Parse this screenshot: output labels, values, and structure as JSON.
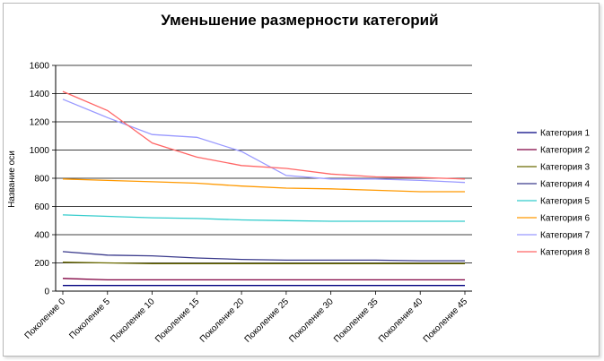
{
  "chart_data": {
    "type": "line",
    "title": "Уменьшение размерности категорий",
    "xlabel": "",
    "ylabel": "Название оси",
    "ylim": [
      0,
      1600
    ],
    "yticks": [
      0,
      200,
      400,
      600,
      800,
      1000,
      1200,
      1400,
      1600
    ],
    "grid": "horizontal",
    "legend_position": "right",
    "x_tick_labels": [
      "Поколение 0",
      "Поколение 5",
      "Поколение 10",
      "Поколение 15",
      "Поколение 20",
      "Поколение 25",
      "Поколение 30",
      "Поколение 35",
      "Поколение 40",
      "Поколение 45"
    ],
    "x": [
      0,
      5,
      10,
      15,
      20,
      25,
      30,
      35,
      40,
      45
    ],
    "series": [
      {
        "name": "Категория 1",
        "color": "#000080",
        "values": [
          40,
          40,
          40,
          40,
          40,
          40,
          40,
          40,
          40,
          40
        ]
      },
      {
        "name": "Категория 2",
        "color": "#800040",
        "values": [
          90,
          80,
          80,
          80,
          80,
          80,
          80,
          80,
          80,
          80
        ]
      },
      {
        "name": "Категория 3",
        "color": "#6b6b00",
        "values": [
          205,
          200,
          195,
          195,
          195,
          195,
          195,
          195,
          195,
          195
        ]
      },
      {
        "name": "Категория 4",
        "color": "#3a3a8c",
        "values": [
          280,
          255,
          250,
          235,
          225,
          220,
          220,
          220,
          215,
          215
        ]
      },
      {
        "name": "Категория 5",
        "color": "#33cccc",
        "values": [
          540,
          530,
          520,
          515,
          505,
          500,
          495,
          495,
          495,
          495
        ]
      },
      {
        "name": "Категория 6",
        "color": "#ff9900",
        "values": [
          795,
          785,
          775,
          765,
          745,
          730,
          725,
          715,
          705,
          705
        ]
      },
      {
        "name": "Категория 7",
        "color": "#9999ff",
        "values": [
          1360,
          1230,
          1110,
          1090,
          990,
          820,
          795,
          795,
          785,
          770
        ]
      },
      {
        "name": "Категория 8",
        "color": "#ff6666",
        "values": [
          1415,
          1280,
          1050,
          950,
          890,
          870,
          830,
          810,
          805,
          795
        ]
      }
    ]
  }
}
